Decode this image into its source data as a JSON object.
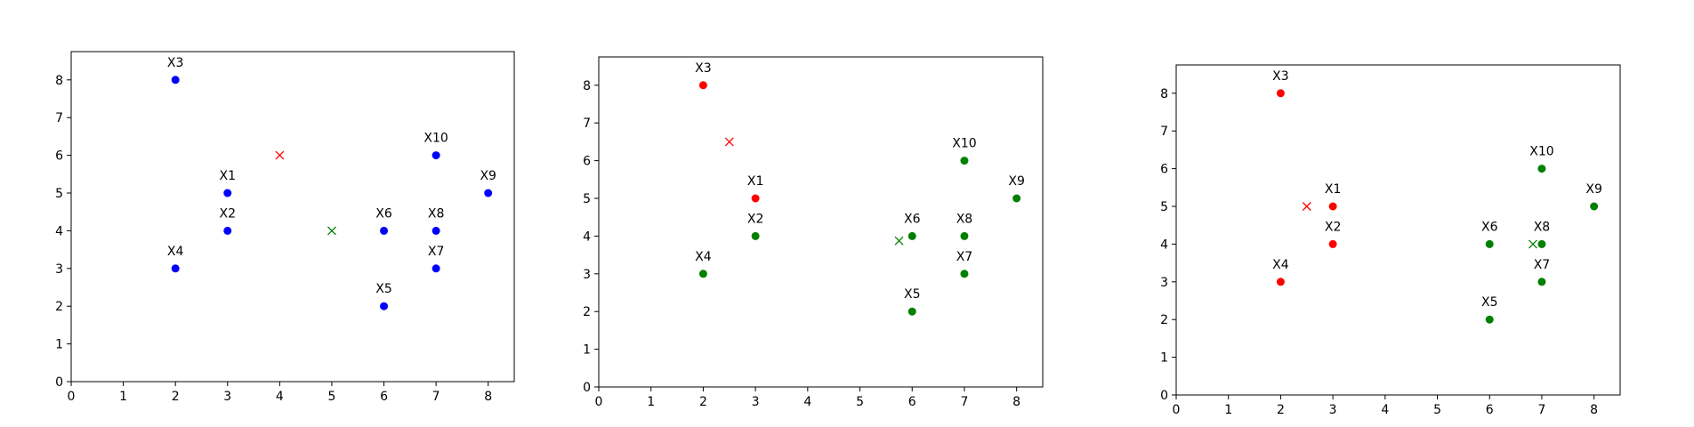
{
  "chart_data": [
    {
      "type": "scatter",
      "title": "",
      "xlabel": "",
      "ylabel": "",
      "xlim": [
        0,
        8.5
      ],
      "ylim": [
        0,
        8.75
      ],
      "xticks": [
        "0",
        "1",
        "2",
        "3",
        "4",
        "5",
        "6",
        "7",
        "8"
      ],
      "yticks": [
        "0",
        "1",
        "2",
        "3",
        "4",
        "5",
        "6",
        "7",
        "8"
      ],
      "grid": false,
      "points": [
        {
          "label": "X1",
          "x": 3,
          "y": 5,
          "color": "#0000ff"
        },
        {
          "label": "X2",
          "x": 3,
          "y": 4,
          "color": "#0000ff"
        },
        {
          "label": "X3",
          "x": 2,
          "y": 8,
          "color": "#0000ff"
        },
        {
          "label": "X4",
          "x": 2,
          "y": 3,
          "color": "#0000ff"
        },
        {
          "label": "X5",
          "x": 6,
          "y": 2,
          "color": "#0000ff"
        },
        {
          "label": "X6",
          "x": 6,
          "y": 4,
          "color": "#0000ff"
        },
        {
          "label": "X7",
          "x": 7,
          "y": 3,
          "color": "#0000ff"
        },
        {
          "label": "X8",
          "x": 7,
          "y": 4,
          "color": "#0000ff"
        },
        {
          "label": "X9",
          "x": 8,
          "y": 5,
          "color": "#0000ff"
        },
        {
          "label": "X10",
          "x": 7,
          "y": 6,
          "color": "#0000ff"
        }
      ],
      "centroids": [
        {
          "x": 4,
          "y": 6,
          "color": "#ff0000"
        },
        {
          "x": 5,
          "y": 4,
          "color": "#008000"
        }
      ]
    },
    {
      "type": "scatter",
      "title": "",
      "xlabel": "",
      "ylabel": "",
      "xlim": [
        0,
        8.5
      ],
      "ylim": [
        0,
        8.75
      ],
      "xticks": [
        "0",
        "1",
        "2",
        "3",
        "4",
        "5",
        "6",
        "7",
        "8"
      ],
      "yticks": [
        "0",
        "1",
        "2",
        "3",
        "4",
        "5",
        "6",
        "7",
        "8"
      ],
      "grid": false,
      "points": [
        {
          "label": "X1",
          "x": 3,
          "y": 5,
          "color": "#ff0000"
        },
        {
          "label": "X2",
          "x": 3,
          "y": 4,
          "color": "#008000"
        },
        {
          "label": "X3",
          "x": 2,
          "y": 8,
          "color": "#ff0000"
        },
        {
          "label": "X4",
          "x": 2,
          "y": 3,
          "color": "#008000"
        },
        {
          "label": "X5",
          "x": 6,
          "y": 2,
          "color": "#008000"
        },
        {
          "label": "X6",
          "x": 6,
          "y": 4,
          "color": "#008000"
        },
        {
          "label": "X7",
          "x": 7,
          "y": 3,
          "color": "#008000"
        },
        {
          "label": "X8",
          "x": 7,
          "y": 4,
          "color": "#008000"
        },
        {
          "label": "X9",
          "x": 8,
          "y": 5,
          "color": "#008000"
        },
        {
          "label": "X10",
          "x": 7,
          "y": 6,
          "color": "#008000"
        }
      ],
      "centroids": [
        {
          "x": 2.5,
          "y": 6.5,
          "color": "#ff0000"
        },
        {
          "x": 5.75,
          "y": 3.875,
          "color": "#008000"
        }
      ]
    },
    {
      "type": "scatter",
      "title": "",
      "xlabel": "",
      "ylabel": "",
      "xlim": [
        0,
        8.5
      ],
      "ylim": [
        0,
        8.75
      ],
      "xticks": [
        "0",
        "1",
        "2",
        "3",
        "4",
        "5",
        "6",
        "7",
        "8"
      ],
      "yticks": [
        "0",
        "1",
        "2",
        "3",
        "4",
        "5",
        "6",
        "7",
        "8"
      ],
      "grid": false,
      "points": [
        {
          "label": "X1",
          "x": 3,
          "y": 5,
          "color": "#ff0000"
        },
        {
          "label": "X2",
          "x": 3,
          "y": 4,
          "color": "#ff0000"
        },
        {
          "label": "X3",
          "x": 2,
          "y": 8,
          "color": "#ff0000"
        },
        {
          "label": "X4",
          "x": 2,
          "y": 3,
          "color": "#ff0000"
        },
        {
          "label": "X5",
          "x": 6,
          "y": 2,
          "color": "#008000"
        },
        {
          "label": "X6",
          "x": 6,
          "y": 4,
          "color": "#008000"
        },
        {
          "label": "X7",
          "x": 7,
          "y": 3,
          "color": "#008000"
        },
        {
          "label": "X8",
          "x": 7,
          "y": 4,
          "color": "#008000"
        },
        {
          "label": "X9",
          "x": 8,
          "y": 5,
          "color": "#008000"
        },
        {
          "label": "X10",
          "x": 7,
          "y": 6,
          "color": "#008000"
        }
      ],
      "centroids": [
        {
          "x": 2.5,
          "y": 5,
          "color": "#ff0000"
        },
        {
          "x": 6.83,
          "y": 4,
          "color": "#008000"
        }
      ]
    }
  ]
}
